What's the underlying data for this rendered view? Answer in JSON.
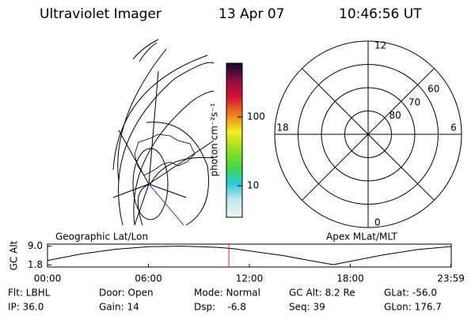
{
  "header": {
    "instrument": "Ultraviolet Imager",
    "date": "13 Apr 07",
    "time": "10:46:56 UT"
  },
  "map_label": "Geographic Lat/Lon",
  "polar_label": "Apex MLat/MLT",
  "colorbar": {
    "label": "photon cm⁻²s⁻¹",
    "log": true,
    "lim": [
      3.5,
      600
    ],
    "ticks": [
      10,
      100
    ]
  },
  "polar": {
    "lat_lim": [
      50,
      90
    ],
    "lat_rings": [
      60,
      70,
      80
    ],
    "mlt_ticks": [
      12,
      18,
      6,
      0
    ]
  },
  "chart_data": {
    "type": "line",
    "ylabel": "GC Alt",
    "x": [
      0,
      2,
      4,
      6,
      8,
      10,
      11,
      12,
      14,
      16,
      17,
      18,
      20,
      22,
      24
    ],
    "values": [
      3.5,
      6.0,
      7.8,
      8.8,
      9.0,
      8.6,
      8.1,
      7.2,
      5.4,
      3.0,
      1.9,
      3.2,
      5.7,
      7.7,
      8.9
    ],
    "color": "#000000",
    "marker_x": 10.78,
    "marker_color": "#e8202a",
    "xlim": [
      0,
      24
    ],
    "xticks": [
      {
        "value": 0,
        "label": "00:00"
      },
      {
        "value": 6,
        "label": "06:00"
      },
      {
        "value": 12,
        "label": "12:00"
      },
      {
        "value": 18,
        "label": "18:00"
      },
      {
        "value": 23.98,
        "label": "23:59"
      }
    ],
    "ylim": [
      1.0,
      9.8
    ],
    "yticks": [
      {
        "value": 9.0,
        "label": "9.0"
      },
      1.8
    ]
  },
  "footer": {
    "rows": [
      [
        "Flt: LBHL",
        "Door: Open",
        "Mode: Normal",
        "GC Alt: 8.2 Re",
        "GLat: -56.0"
      ],
      [
        "IP: 36.0",
        "Gain: 14",
        "Dsp:    -6.8",
        "Seq: 39",
        "GLon: 176.7"
      ]
    ]
  }
}
